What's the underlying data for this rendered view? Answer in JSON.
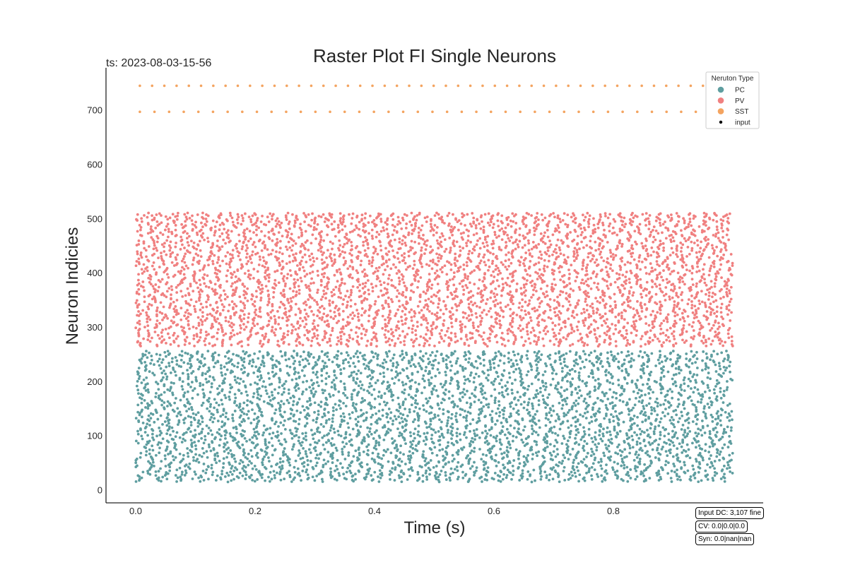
{
  "chart_data": {
    "type": "scatter",
    "title": "Raster Plot FI Single Neurons",
    "timestamp": "ts: 2023-08-03-15-56",
    "xlabel": "Time (s)",
    "ylabel": "Neuron Indicies",
    "xlim": [
      -0.05,
      1.05
    ],
    "ylim": [
      -25,
      780
    ],
    "xticks": [
      "0.0",
      "0.2",
      "0.4",
      "0.6",
      "0.8"
    ],
    "xtick_values": [
      0.0,
      0.2,
      0.4,
      0.6,
      0.8
    ],
    "yticks": [
      "0",
      "100",
      "200",
      "300",
      "400",
      "500",
      "600",
      "700"
    ],
    "ytick_values": [
      0,
      100,
      200,
      300,
      400,
      500,
      600,
      700
    ],
    "grid": false,
    "legend": {
      "title": "Neruton Type",
      "placement": "top-right",
      "entries": [
        {
          "label": "PC",
          "color": "#5f9ea0"
        },
        {
          "label": "PV",
          "color": "#f08080"
        },
        {
          "label": "SST",
          "color": "#f4a460"
        },
        {
          "label": "input",
          "color": "#000000"
        }
      ]
    },
    "series": [
      {
        "name": "PC",
        "color": "#5f9ea0",
        "neuron_range": [
          15,
          255
        ],
        "time_range": [
          0.0,
          1.0
        ],
        "marker": "dot"
      },
      {
        "name": "PV",
        "color": "#f08080",
        "neuron_range": [
          265,
          510
        ],
        "time_range": [
          0.0,
          1.0
        ],
        "marker": "dot"
      },
      {
        "name": "SST",
        "color": "#f4a460",
        "neurons": [
          697,
          745
        ],
        "time_range": [
          0.0,
          1.0
        ],
        "marker": "dot",
        "regular": true
      }
    ],
    "annotations": [
      "Input DC: 3,107 fine",
      "CV: 0.0|0.0|0.0",
      "Syn: 0.0|nan|nan"
    ]
  }
}
